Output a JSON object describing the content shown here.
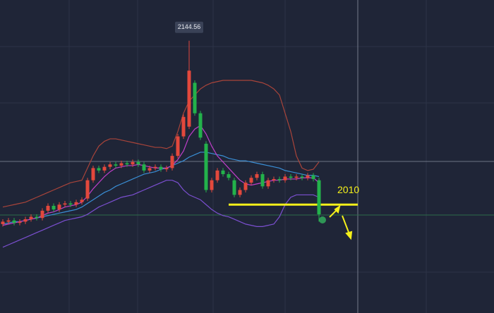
{
  "chart_data": {
    "type": "candlestick",
    "open": [
      1994,
      1996,
      1997,
      1995,
      1996,
      1998,
      2000,
      1999,
      2005,
      2009,
      2006,
      2010,
      2011,
      2010,
      2012,
      2015,
      2030,
      2040,
      2038,
      2041,
      2043,
      2042,
      2044,
      2043,
      2045,
      2043,
      2038,
      2040,
      2041,
      2039,
      2040,
      2050,
      2066,
      2074,
      2110,
      2085,
      2060,
      2022,
      2030,
      2038,
      2035,
      2030,
      2018,
      2022,
      2028,
      2032,
      2035,
      2025,
      2030,
      2031,
      2030,
      2033,
      2032,
      2033,
      2032,
      2034,
      2030
    ],
    "high": [
      1998,
      1999,
      1999,
      1998,
      2000,
      2002,
      2002,
      2007,
      2011,
      2011,
      2012,
      2013,
      2013,
      2014,
      2016,
      2032,
      2042,
      2042,
      2043,
      2045,
      2045,
      2046,
      2046,
      2047,
      2047,
      2045,
      2042,
      2043,
      2043,
      2042,
      2052,
      2068,
      2084,
      2144.56,
      2112,
      2087,
      2062,
      2032,
      2040,
      2040,
      2037,
      2032,
      2024,
      2030,
      2034,
      2037,
      2037,
      2032,
      2033,
      2033,
      2035,
      2035,
      2035,
      2035,
      2036,
      2036,
      2032
    ],
    "low": [
      1992,
      1994,
      1993,
      1993,
      1994,
      1996,
      1997,
      1997,
      2003,
      2004,
      2004,
      2008,
      2008,
      2008,
      2010,
      2013,
      2028,
      2036,
      2036,
      2039,
      2040,
      2040,
      2041,
      2041,
      2041,
      2036,
      2036,
      2038,
      2037,
      2037,
      2038,
      2048,
      2064,
      2072,
      2083,
      2063,
      2020,
      2020,
      2028,
      2033,
      2030,
      2016,
      2016,
      2020,
      2026,
      2030,
      2023,
      2023,
      2028,
      2028,
      2028,
      2030,
      2030,
      2030,
      2030,
      2029,
      1996
    ],
    "close": [
      1996,
      1997,
      1995,
      1996,
      1998,
      2000,
      1999,
      2005,
      2009,
      2006,
      2010,
      2011,
      2010,
      2012,
      2014,
      2030,
      2040,
      2038,
      2041,
      2043,
      2042,
      2044,
      2043,
      2045,
      2043,
      2038,
      2040,
      2041,
      2039,
      2040,
      2050,
      2066,
      2082,
      2120,
      2085,
      2065,
      2022,
      2030,
      2038,
      2035,
      2032,
      2018,
      2022,
      2028,
      2032,
      2035,
      2025,
      2030,
      2031,
      2030,
      2033,
      2032,
      2033,
      2032,
      2034,
      2031,
      2002
    ],
    "up_color": "#e2483c",
    "down_color": "#23b24b",
    "lines": [
      {
        "color": "#3a8fd6",
        "values": [
          1994,
          1995,
          1996,
          1996,
          1997,
          1998,
          1999,
          2000,
          2001,
          2002,
          2003,
          2004,
          2005,
          2006,
          2008,
          2011,
          2014,
          2017,
          2020,
          2022,
          2025,
          2027,
          2029,
          2031,
          2033,
          2035,
          2036,
          2037,
          2039,
          2040,
          2042,
          2044,
          2046,
          2049,
          2051,
          2053,
          2053,
          2052,
          2051,
          2050,
          2048,
          2047,
          2046,
          2046,
          2045,
          2044,
          2043,
          2042,
          2041,
          2040,
          2038,
          2037,
          2036,
          2035,
          2034,
          2034,
          2033
        ]
      },
      {
        "color": "#c03ec9",
        "values": [
          1993,
          1994,
          1995,
          1996,
          1997,
          1998,
          1999,
          2001,
          2003,
          2004,
          2006,
          2008,
          2009,
          2010,
          2012,
          2017,
          2023,
          2028,
          2033,
          2037,
          2040,
          2041,
          2042,
          2042,
          2043,
          2042,
          2041,
          2040,
          2040,
          2040,
          2042,
          2047,
          2054,
          2066,
          2072,
          2075,
          2068,
          2058,
          2050,
          2045,
          2040,
          2035,
          2030,
          2027,
          2026,
          2027,
          2028,
          2029,
          2030,
          2030,
          2031,
          2031,
          2031,
          2032,
          2032,
          2032,
          2028
        ]
      },
      {
        "color": "#a8443a",
        "values": [
          2008,
          2009,
          2010,
          2011,
          2012,
          2014,
          2016,
          2018,
          2020,
          2022,
          2024,
          2026,
          2028,
          2029,
          2030,
          2040,
          2050,
          2058,
          2062,
          2064,
          2064,
          2063,
          2062,
          2061,
          2060,
          2059,
          2058,
          2057,
          2057,
          2056,
          2058,
          2070,
          2085,
          2095,
          2100,
          2105,
          2108,
          2110,
          2111,
          2112,
          2112,
          2112,
          2112,
          2112,
          2112,
          2111,
          2110,
          2108,
          2105,
          2100,
          2085,
          2070,
          2050,
          2040,
          2038,
          2039,
          2045
        ]
      },
      {
        "color": "#7b4fd0",
        "values": [
          1975,
          1977,
          1979,
          1981,
          1983,
          1985,
          1987,
          1989,
          1991,
          1993,
          1995,
          1997,
          1998,
          1999,
          2000,
          2002,
          2005,
          2008,
          2010,
          2012,
          2014,
          2016,
          2017,
          2018,
          2020,
          2022,
          2024,
          2026,
          2028,
          2030,
          2030,
          2028,
          2022,
          2018,
          2016,
          2014,
          2010,
          2006,
          2003,
          2001,
          2000,
          1998,
          1996,
          1994,
          1993,
          1992,
          1992,
          1993,
          1994,
          2000,
          2010,
          2016,
          2018,
          2018,
          2018,
          2018,
          2016
        ]
      }
    ],
    "level": 2010,
    "level_color": "#f5f01a",
    "ylim": [
      1921,
      2178
    ]
  }
}
